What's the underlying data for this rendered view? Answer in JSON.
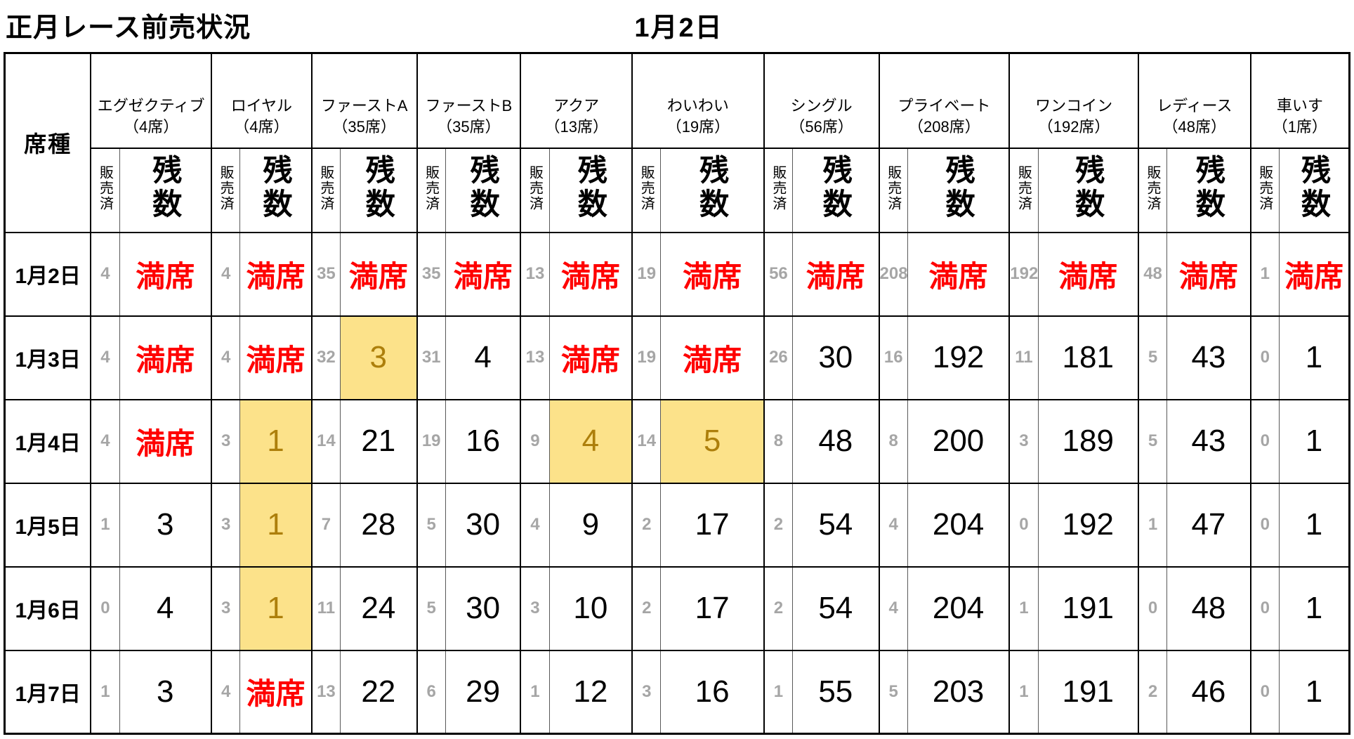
{
  "title": "正月レース前売状況",
  "date_heading": "1月2日",
  "table": {
    "corner_header": "席種",
    "sold_label": "販売済",
    "remaining_label": "残数",
    "full_label": "満席",
    "categories": [
      {
        "name": "エグゼクティブ",
        "capacity": "（4席）"
      },
      {
        "name": "ロイヤル",
        "capacity": "（4席）"
      },
      {
        "name": "ファーストA",
        "capacity": "（35席）"
      },
      {
        "name": "ファーストB",
        "capacity": "（35席）"
      },
      {
        "name": "アクア",
        "capacity": "（13席）"
      },
      {
        "name": "わいわい",
        "capacity": "（19席）"
      },
      {
        "name": "シングル",
        "capacity": "（56席）"
      },
      {
        "name": "プライベート",
        "capacity": "（208席）"
      },
      {
        "name": "ワンコイン",
        "capacity": "（192席）"
      },
      {
        "name": "レディース",
        "capacity": "（48席）"
      },
      {
        "name": "車いす",
        "capacity": "（1席）"
      }
    ],
    "rows": [
      {
        "date": "1月2日",
        "cells": [
          {
            "sold": "4",
            "remaining": "満席",
            "state": "full"
          },
          {
            "sold": "4",
            "remaining": "満席",
            "state": "full"
          },
          {
            "sold": "35",
            "remaining": "満席",
            "state": "full"
          },
          {
            "sold": "35",
            "remaining": "満席",
            "state": "full"
          },
          {
            "sold": "13",
            "remaining": "満席",
            "state": "full"
          },
          {
            "sold": "19",
            "remaining": "満席",
            "state": "full"
          },
          {
            "sold": "56",
            "remaining": "満席",
            "state": "full"
          },
          {
            "sold": "208",
            "remaining": "満席",
            "state": "full"
          },
          {
            "sold": "192",
            "remaining": "満席",
            "state": "full"
          },
          {
            "sold": "48",
            "remaining": "満席",
            "state": "full"
          },
          {
            "sold": "1",
            "remaining": "満席",
            "state": "full"
          }
        ]
      },
      {
        "date": "1月3日",
        "cells": [
          {
            "sold": "4",
            "remaining": "満席",
            "state": "full"
          },
          {
            "sold": "4",
            "remaining": "満席",
            "state": "full"
          },
          {
            "sold": "32",
            "remaining": "3",
            "state": "low"
          },
          {
            "sold": "31",
            "remaining": "4",
            "state": "normal"
          },
          {
            "sold": "13",
            "remaining": "満席",
            "state": "full"
          },
          {
            "sold": "19",
            "remaining": "満席",
            "state": "full"
          },
          {
            "sold": "26",
            "remaining": "30",
            "state": "normal"
          },
          {
            "sold": "16",
            "remaining": "192",
            "state": "normal"
          },
          {
            "sold": "11",
            "remaining": "181",
            "state": "normal"
          },
          {
            "sold": "5",
            "remaining": "43",
            "state": "normal"
          },
          {
            "sold": "0",
            "remaining": "1",
            "state": "normal"
          }
        ]
      },
      {
        "date": "1月4日",
        "cells": [
          {
            "sold": "4",
            "remaining": "満席",
            "state": "full"
          },
          {
            "sold": "3",
            "remaining": "1",
            "state": "low"
          },
          {
            "sold": "14",
            "remaining": "21",
            "state": "normal"
          },
          {
            "sold": "19",
            "remaining": "16",
            "state": "normal"
          },
          {
            "sold": "9",
            "remaining": "4",
            "state": "low"
          },
          {
            "sold": "14",
            "remaining": "5",
            "state": "low"
          },
          {
            "sold": "8",
            "remaining": "48",
            "state": "normal"
          },
          {
            "sold": "8",
            "remaining": "200",
            "state": "normal"
          },
          {
            "sold": "3",
            "remaining": "189",
            "state": "normal"
          },
          {
            "sold": "5",
            "remaining": "43",
            "state": "normal"
          },
          {
            "sold": "0",
            "remaining": "1",
            "state": "normal"
          }
        ]
      },
      {
        "date": "1月5日",
        "cells": [
          {
            "sold": "1",
            "remaining": "3",
            "state": "normal"
          },
          {
            "sold": "3",
            "remaining": "1",
            "state": "low"
          },
          {
            "sold": "7",
            "remaining": "28",
            "state": "normal"
          },
          {
            "sold": "5",
            "remaining": "30",
            "state": "normal"
          },
          {
            "sold": "4",
            "remaining": "9",
            "state": "normal"
          },
          {
            "sold": "2",
            "remaining": "17",
            "state": "normal"
          },
          {
            "sold": "2",
            "remaining": "54",
            "state": "normal"
          },
          {
            "sold": "4",
            "remaining": "204",
            "state": "normal"
          },
          {
            "sold": "0",
            "remaining": "192",
            "state": "normal"
          },
          {
            "sold": "1",
            "remaining": "47",
            "state": "normal"
          },
          {
            "sold": "0",
            "remaining": "1",
            "state": "normal"
          }
        ]
      },
      {
        "date": "1月6日",
        "cells": [
          {
            "sold": "0",
            "remaining": "4",
            "state": "normal"
          },
          {
            "sold": "3",
            "remaining": "1",
            "state": "low"
          },
          {
            "sold": "11",
            "remaining": "24",
            "state": "normal"
          },
          {
            "sold": "5",
            "remaining": "30",
            "state": "normal"
          },
          {
            "sold": "3",
            "remaining": "10",
            "state": "normal"
          },
          {
            "sold": "2",
            "remaining": "17",
            "state": "normal"
          },
          {
            "sold": "2",
            "remaining": "54",
            "state": "normal"
          },
          {
            "sold": "4",
            "remaining": "204",
            "state": "normal"
          },
          {
            "sold": "1",
            "remaining": "191",
            "state": "normal"
          },
          {
            "sold": "0",
            "remaining": "48",
            "state": "normal"
          },
          {
            "sold": "0",
            "remaining": "1",
            "state": "normal"
          }
        ]
      },
      {
        "date": "1月7日",
        "cells": [
          {
            "sold": "1",
            "remaining": "3",
            "state": "normal"
          },
          {
            "sold": "4",
            "remaining": "満席",
            "state": "full"
          },
          {
            "sold": "13",
            "remaining": "22",
            "state": "normal"
          },
          {
            "sold": "6",
            "remaining": "29",
            "state": "normal"
          },
          {
            "sold": "1",
            "remaining": "12",
            "state": "normal"
          },
          {
            "sold": "3",
            "remaining": "16",
            "state": "normal"
          },
          {
            "sold": "1",
            "remaining": "55",
            "state": "normal"
          },
          {
            "sold": "5",
            "remaining": "203",
            "state": "normal"
          },
          {
            "sold": "1",
            "remaining": "191",
            "state": "normal"
          },
          {
            "sold": "2",
            "remaining": "46",
            "state": "normal"
          },
          {
            "sold": "0",
            "remaining": "1",
            "state": "normal"
          }
        ]
      }
    ]
  },
  "colors": {
    "full_text": "#FF0000",
    "sold_text": "#A6A6A6",
    "highlight_bg": "#FCE28A",
    "highlight_text": "#AD7F0B",
    "grid": "#000000",
    "thin_grid": "#595959"
  }
}
